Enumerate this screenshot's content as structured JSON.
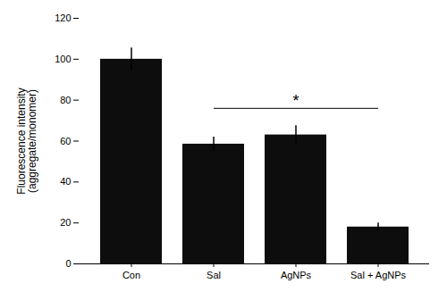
{
  "chart_data": {
    "type": "bar",
    "categories": [
      "Con",
      "Sal",
      "AgNPs",
      "Sal + AgNPs"
    ],
    "values": [
      100,
      58.5,
      63.0,
      18.0
    ],
    "errors": [
      5.5,
      3.5,
      4.5,
      2.0
    ],
    "color": "#0d0d0d",
    "ylabel": "Fluorescence intensity\n(aggregate/monomer)",
    "ylim": [
      0,
      120
    ],
    "yticks": [
      0,
      20,
      40,
      60,
      80,
      100,
      120
    ],
    "grid": false,
    "annotations": [
      {
        "type": "line",
        "x1": "Sal",
        "x2": "Sal + AgNPs",
        "y": 76
      },
      {
        "type": "text",
        "text": "*",
        "x": "AgNPs",
        "y": 77
      }
    ]
  }
}
